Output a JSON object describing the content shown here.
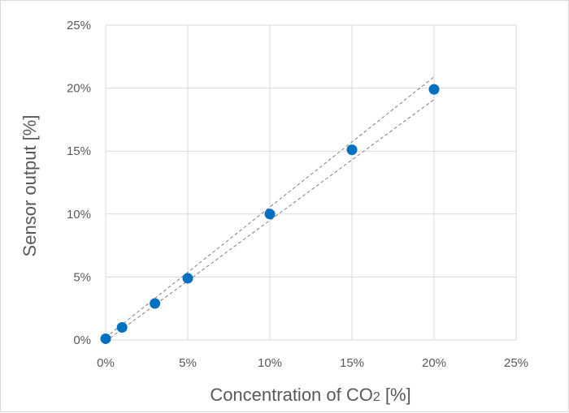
{
  "chart_data": {
    "type": "scatter",
    "xlabel": "Concentration of CO",
    "xlabel_subscript": "2",
    "xlabel_suffix": " [%]",
    "ylabel": "Sensor output [%]",
    "xlim": [
      0,
      25
    ],
    "ylim": [
      0,
      25
    ],
    "x_ticks": [
      "0%",
      "5%",
      "10%",
      "15%",
      "20%",
      "25%"
    ],
    "y_ticks": [
      "0%",
      "5%",
      "10%",
      "15%",
      "20%",
      "25%"
    ],
    "grid": true,
    "legend": "none",
    "series": [
      {
        "x": [
          0,
          1,
          3,
          5,
          10,
          15,
          20
        ],
        "y": [
          0.1,
          1.0,
          2.9,
          4.9,
          10.0,
          15.1,
          19.9
        ],
        "color": "#0070c0"
      }
    ],
    "bounds": [
      {
        "x": [
          0,
          20
        ],
        "y": [
          0.2,
          20.9
        ],
        "color": "#7f7f7f",
        "style": "dashed"
      },
      {
        "x": [
          0,
          20
        ],
        "y": [
          -0.1,
          19.1
        ],
        "color": "#7f7f7f",
        "style": "dashed"
      }
    ]
  }
}
